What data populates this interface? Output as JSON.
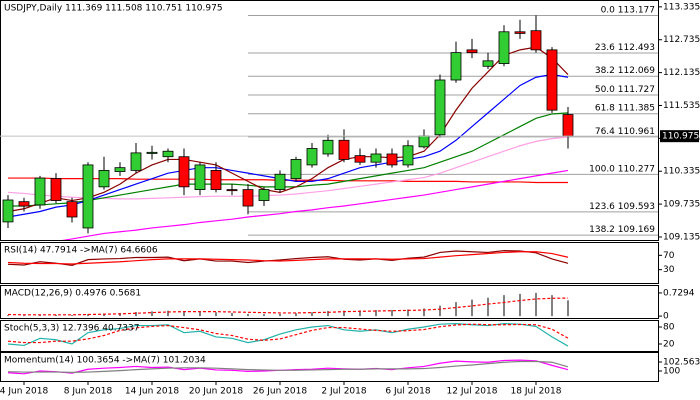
{
  "chart_data": [
    {
      "type": "candlestick",
      "title": "USDJPY,Daily  111.369 111.508 110.751 110.975",
      "categories": [
        null,
        "4 Jun 2018",
        null,
        null,
        null,
        "8 Jun 2018",
        null,
        null,
        null,
        "14 Jun 2018",
        null,
        null,
        null,
        "20 Jun 2018",
        null,
        null,
        null,
        "26 Jun 2018",
        null,
        null,
        null,
        "2 Jul 2018",
        null,
        null,
        null,
        "6 Jul 2018",
        null,
        null,
        null,
        "12 Jul 2018",
        null,
        null,
        null,
        "18 Jul 2018",
        null,
        null
      ],
      "open": [
        109.41,
        109.78,
        109.72,
        110.2,
        109.78,
        109.3,
        110.05,
        110.33,
        110.35,
        110.66,
        110.6,
        110.6,
        110.0,
        110.35,
        110.0,
        110.0,
        109.8,
        110.0,
        110.2,
        110.45,
        110.65,
        110.9,
        110.62,
        110.5,
        110.65,
        110.45,
        110.78,
        111.0,
        112.0,
        112.55,
        112.25,
        112.3,
        112.88,
        112.9,
        112.55,
        111.369
      ],
      "high": [
        109.9,
        109.85,
        110.25,
        110.3,
        109.85,
        110.5,
        110.6,
        110.5,
        110.85,
        110.8,
        110.75,
        110.75,
        110.5,
        110.5,
        110.1,
        110.1,
        110.05,
        110.35,
        110.6,
        110.85,
        111.0,
        111.1,
        110.75,
        110.75,
        110.75,
        110.9,
        111.1,
        112.1,
        112.7,
        112.75,
        112.5,
        113.0,
        113.1,
        113.18,
        112.6,
        111.508
      ],
      "low": [
        109.3,
        109.6,
        109.65,
        109.75,
        109.4,
        109.2,
        110.0,
        110.25,
        110.3,
        110.55,
        110.5,
        109.9,
        109.9,
        109.95,
        109.9,
        109.55,
        109.7,
        109.95,
        110.15,
        110.4,
        110.6,
        110.5,
        110.45,
        110.4,
        110.4,
        110.4,
        110.75,
        110.95,
        111.95,
        112.4,
        112.2,
        112.25,
        112.75,
        112.5,
        111.4,
        110.751
      ],
      "close": [
        109.81,
        109.7,
        110.21,
        109.8,
        109.5,
        110.45,
        110.35,
        110.4,
        110.67,
        110.68,
        110.7,
        110.05,
        110.45,
        110.0,
        109.98,
        109.7,
        110.0,
        110.28,
        110.55,
        110.75,
        110.9,
        110.55,
        110.5,
        110.65,
        110.45,
        110.8,
        110.98,
        112.0,
        112.5,
        112.5,
        112.35,
        112.88,
        112.85,
        112.55,
        111.45,
        110.975
      ],
      "up_color": "#32cd32",
      "down_color": "#ff0000",
      "series": [
        {
          "color": "#ff0000",
          "values": [
            110.21,
            110.21,
            110.21,
            110.2,
            110.2,
            110.2,
            110.2,
            110.2,
            110.19,
            110.19,
            110.19,
            110.19,
            110.19,
            110.18,
            110.18,
            110.18,
            110.18,
            110.17,
            110.17,
            110.17,
            110.17,
            110.16,
            110.16,
            110.16,
            110.16,
            110.15,
            110.15,
            110.15,
            110.15,
            110.14,
            110.14,
            110.14,
            110.14,
            110.13,
            110.13,
            110.13
          ]
        },
        {
          "color": "#ff00ff",
          "values": [
            108.9,
            108.95,
            109.0,
            109.05,
            109.1,
            109.15,
            109.2,
            109.23,
            109.26,
            109.3,
            109.33,
            109.36,
            109.4,
            109.43,
            109.46,
            109.5,
            109.53,
            109.56,
            109.6,
            109.63,
            109.67,
            109.7,
            109.74,
            109.78,
            109.82,
            109.86,
            109.9,
            109.95,
            110.0,
            110.05,
            110.1,
            110.15,
            110.2,
            110.25,
            110.3,
            110.35
          ]
        },
        {
          "color": "#ffa0e6",
          "values": [
            109.95,
            109.93,
            109.9,
            109.88,
            109.86,
            109.85,
            109.84,
            109.83,
            109.83,
            109.84,
            109.85,
            109.86,
            109.87,
            109.88,
            109.88,
            109.88,
            109.89,
            109.9,
            109.92,
            109.95,
            109.98,
            110.02,
            110.06,
            110.1,
            110.14,
            110.18,
            110.22,
            110.3,
            110.4,
            110.5,
            110.6,
            110.7,
            110.8,
            110.88,
            110.93,
            110.96
          ]
        },
        {
          "color": "#008000",
          "values": [
            109.7,
            109.7,
            109.72,
            109.74,
            109.76,
            109.8,
            109.85,
            109.9,
            109.95,
            110.0,
            110.05,
            110.1,
            110.1,
            110.1,
            110.1,
            110.08,
            110.05,
            110.05,
            110.05,
            110.08,
            110.1,
            110.15,
            110.2,
            110.25,
            110.3,
            110.35,
            110.4,
            110.5,
            110.6,
            110.7,
            110.85,
            111.0,
            111.15,
            111.3,
            111.38,
            111.4
          ]
        },
        {
          "color": "#0000ff",
          "values": [
            109.5,
            109.55,
            109.6,
            109.68,
            109.72,
            109.8,
            109.9,
            110.0,
            110.1,
            110.2,
            110.3,
            110.35,
            110.4,
            110.4,
            110.35,
            110.3,
            110.25,
            110.2,
            110.15,
            110.15,
            110.2,
            110.3,
            110.4,
            110.45,
            110.5,
            110.55,
            110.6,
            110.7,
            110.9,
            111.15,
            111.4,
            111.65,
            111.9,
            112.05,
            112.1,
            112.05
          ]
        },
        {
          "color": "#8b0000",
          "values": [
            109.6,
            109.65,
            109.75,
            109.85,
            109.8,
            109.85,
            109.95,
            110.1,
            110.3,
            110.45,
            110.55,
            110.55,
            110.5,
            110.45,
            110.3,
            110.15,
            110.0,
            109.95,
            110.05,
            110.2,
            110.4,
            110.55,
            110.6,
            110.6,
            110.58,
            110.6,
            110.7,
            111.0,
            111.45,
            111.85,
            112.15,
            112.45,
            112.55,
            112.6,
            112.4,
            112.1
          ]
        }
      ],
      "fib_color": "#a0a0a0",
      "fib": [
        {
          "label": "0.0",
          "value": 113.177
        },
        {
          "label": "23.6",
          "value": 112.493
        },
        {
          "label": "38.2",
          "value": 112.069
        },
        {
          "label": "50.0",
          "value": 111.727
        },
        {
          "label": "61.8",
          "value": 111.385
        },
        {
          "label": "76.4",
          "value": 110.961
        },
        {
          "label": "100.0",
          "value": 110.277
        },
        {
          "label": "123.6",
          "value": 109.593
        },
        {
          "label": "138.2",
          "value": 109.169
        }
      ],
      "current": 110.975,
      "ylim": [
        109.08,
        113.46
      ],
      "yticks": [
        113.335,
        112.735,
        112.135,
        111.535,
        110.935,
        110.335,
        109.735,
        109.135
      ]
    },
    {
      "type": "line",
      "title": "RSI(14) 47.7914 ->MA(7) 64.6606",
      "series": [
        {
          "color": "#8b0000",
          "values": [
            45,
            43,
            52,
            48,
            42,
            58,
            60,
            61,
            64,
            64,
            65,
            55,
            60,
            54,
            54,
            50,
            54,
            57,
            61,
            64,
            66,
            59,
            57,
            60,
            56,
            62,
            65,
            78,
            82,
            80,
            78,
            83,
            82,
            77,
            60,
            47.7914
          ]
        },
        {
          "color": "#ff0000",
          "values": [
            50,
            48,
            47,
            47,
            46,
            48,
            50,
            52,
            55,
            58,
            60,
            60,
            60,
            59,
            58,
            57,
            55,
            54,
            56,
            58,
            60,
            60,
            60,
            60,
            59,
            60,
            61,
            65,
            69,
            72,
            75,
            78,
            80,
            80,
            75,
            64.6606
          ]
        }
      ],
      "ylim": [
        -7.14,
        107.14
      ],
      "yticks": [
        70,
        30
      ]
    },
    {
      "type": "macd",
      "title": "MACD(12,26,9) 0.4976 0.5681",
      "values": [
        0.03,
        0.02,
        0.03,
        0.04,
        0.03,
        0.06,
        0.08,
        0.1,
        0.13,
        0.15,
        0.17,
        0.15,
        0.15,
        0.12,
        0.1,
        0.07,
        0.06,
        0.07,
        0.09,
        0.12,
        0.16,
        0.17,
        0.18,
        0.19,
        0.19,
        0.21,
        0.24,
        0.33,
        0.44,
        0.52,
        0.58,
        0.66,
        0.7,
        0.73,
        0.66,
        0.4976
      ],
      "color": "#808080",
      "series": [
        {
          "color": "#ff0000",
          "dashed": true,
          "values": [
            0.05,
            0.04,
            0.04,
            0.04,
            0.04,
            0.05,
            0.06,
            0.07,
            0.09,
            0.11,
            0.13,
            0.14,
            0.14,
            0.14,
            0.13,
            0.12,
            0.11,
            0.1,
            0.1,
            0.11,
            0.12,
            0.14,
            0.15,
            0.16,
            0.17,
            0.18,
            0.19,
            0.22,
            0.27,
            0.32,
            0.38,
            0.43,
            0.49,
            0.54,
            0.56,
            0.5681
          ]
        }
      ],
      "ylim": [
        -0.06,
        0.98
      ],
      "yticks": [
        0.7294,
        0
      ]
    },
    {
      "type": "line",
      "title": "Stoch(5,3,3) 12.7396 40.7337",
      "series": [
        {
          "color": "#20b2aa",
          "values": [
            20,
            15,
            40,
            35,
            20,
            60,
            70,
            75,
            85,
            85,
            88,
            60,
            65,
            45,
            40,
            25,
            35,
            55,
            70,
            80,
            85,
            70,
            65,
            70,
            60,
            72,
            80,
            90,
            92,
            88,
            85,
            92,
            90,
            82,
            45,
            12.7396
          ]
        },
        {
          "color": "#ff0000",
          "dashed": true,
          "values": [
            30,
            25,
            25,
            30,
            30,
            38,
            50,
            68,
            77,
            82,
            85,
            78,
            70,
            57,
            50,
            37,
            33,
            38,
            53,
            68,
            78,
            78,
            73,
            68,
            65,
            67,
            71,
            81,
            87,
            90,
            88,
            88,
            89,
            88,
            72,
            40.7337
          ]
        }
      ],
      "ylim": [
        -4.7,
        104.7
      ],
      "yticks": [
        80,
        20
      ]
    },
    {
      "type": "line",
      "title": "Momentum(14) 100.3654 ->MA(7) 101.2034",
      "series": [
        {
          "color": "#ff00ff",
          "values": [
            99.5,
            99.2,
            100.0,
            99.8,
            99.4,
            100.5,
            100.8,
            101.0,
            101.3,
            101.0,
            101.1,
            100.4,
            100.8,
            100.3,
            100.2,
            99.9,
            100.0,
            100.2,
            100.4,
            100.5,
            100.8,
            100.6,
            100.5,
            100.7,
            100.4,
            100.9,
            101.3,
            102.2,
            102.8,
            102.6,
            102.5,
            103.0,
            103.1,
            102.9,
            101.6,
            100.3654
          ]
        },
        {
          "color": "#808080",
          "values": [
            99.8,
            99.7,
            99.7,
            99.7,
            99.6,
            99.7,
            99.9,
            100.1,
            100.4,
            100.6,
            100.8,
            100.9,
            100.9,
            100.8,
            100.6,
            100.4,
            100.3,
            100.2,
            100.2,
            100.3,
            100.4,
            100.5,
            100.5,
            100.6,
            100.6,
            100.6,
            100.7,
            101.0,
            101.4,
            101.7,
            102.1,
            102.5,
            102.7,
            102.7,
            102.5,
            101.2034
          ]
        }
      ],
      "ylim": [
        97.15,
        105.41
      ],
      "yticks": [
        102.5635,
        100
      ]
    }
  ]
}
